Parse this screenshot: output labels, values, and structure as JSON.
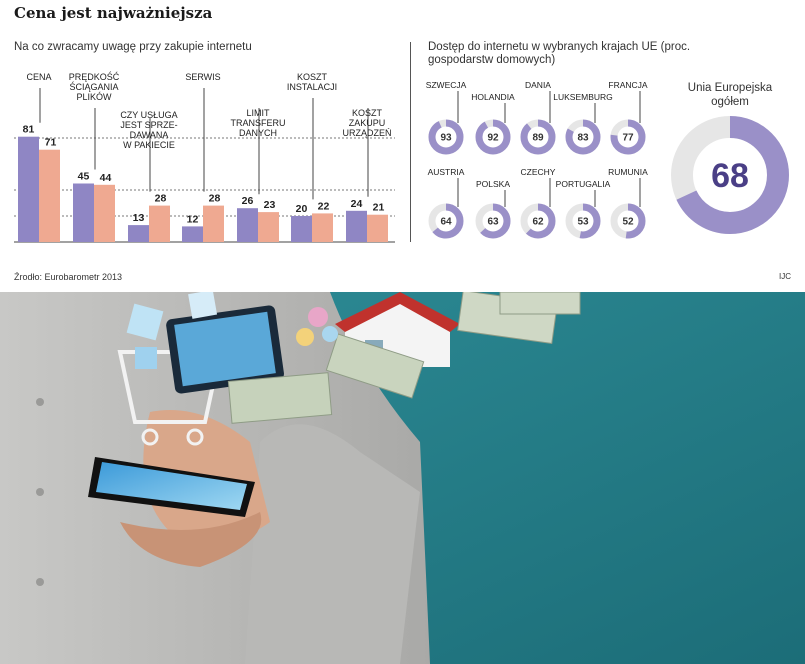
{
  "title": "Cena jest najważniejsza",
  "source": "Źrodło: Eurobarometr 2013",
  "credit": "IJC",
  "chart_data": [
    {
      "type": "bar",
      "subtitle": "Na co zwracamy uwagę przy zakupie internetu",
      "categories": [
        [
          "CENA"
        ],
        [
          "PRĘDKOŚĆ",
          "ŚCIĄGANIA",
          "PLIKÓW"
        ],
        [
          "CZY USŁUGA",
          "JEST SPRZE-",
          "DAWANA",
          "W PAKIECIE"
        ],
        [
          "SERWIS"
        ],
        [
          "LIMIT",
          "TRANSFERU",
          "DANYCH"
        ],
        [
          "KOSZT",
          "INSTALACJI"
        ],
        [
          "KOSZT",
          "ZAKUPU",
          "URZĄDZEŃ"
        ]
      ],
      "series": [
        {
          "values": [
            81,
            45,
            13,
            12,
            26,
            20,
            24
          ],
          "color": "#8f86c4"
        },
        {
          "values": [
            71,
            44,
            28,
            28,
            23,
            22,
            21
          ],
          "color": "#efa991"
        }
      ],
      "ylim": [
        0,
        100
      ],
      "grid": true
    },
    {
      "type": "pie",
      "subtitle": "Dostęp do internetu w wybranych krajach UE (proc. gospodarstw domowych)",
      "countries": [
        {
          "name": "SZWECJA",
          "value": 93
        },
        {
          "name": "HOLANDIA",
          "value": 92
        },
        {
          "name": "DANIA",
          "value": 89
        },
        {
          "name": "LUKSEMBURG",
          "value": 83
        },
        {
          "name": "FRANCJA",
          "value": 77
        },
        {
          "name": "AUSTRIA",
          "value": 64
        },
        {
          "name": "POLSKA",
          "value": 63
        },
        {
          "name": "CZECHY",
          "value": 62
        },
        {
          "name": "PORTUGALIA",
          "value": 53
        },
        {
          "name": "RUMUNIA",
          "value": 52
        }
      ],
      "total": {
        "label": "Unia Europejska ogółem",
        "value": 68
      },
      "colors": {
        "fill": "#9a90c8",
        "track": "#e6e6e6",
        "text": "#4a3f86"
      }
    }
  ]
}
